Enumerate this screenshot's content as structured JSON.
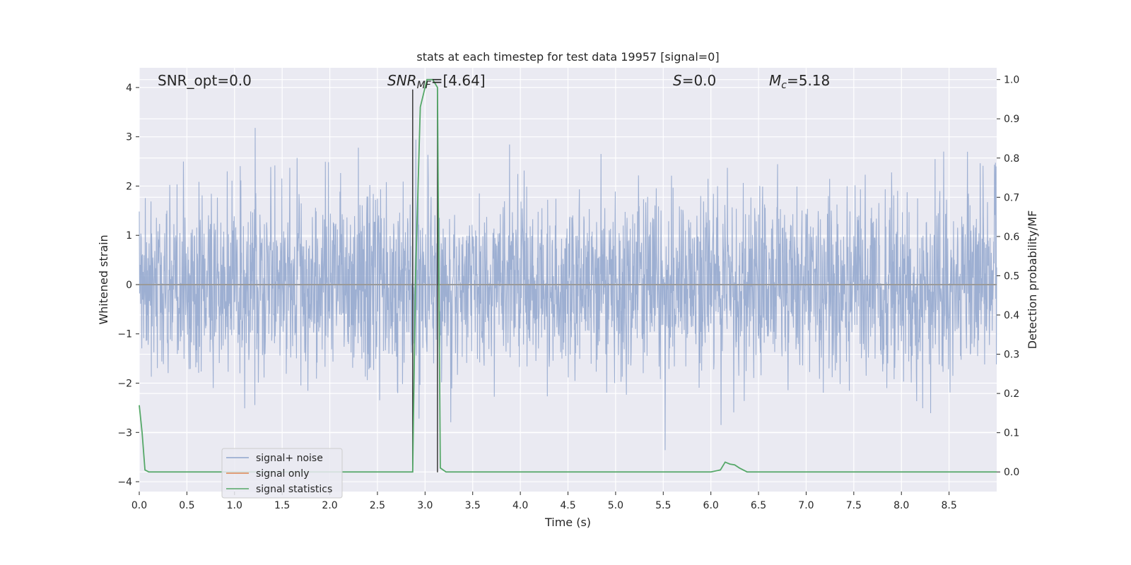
{
  "chart_data": {
    "type": "line",
    "title": "stats at each timestep for test data 19957 [signal=0]",
    "xlabel": "Time (s)",
    "ylabel": "Whitened strain",
    "ylabel_right": "Detection probability/MF",
    "xlim": [
      0.0,
      9.0
    ],
    "ylim": [
      -4.2,
      4.4
    ],
    "ylim_right": [
      -0.05,
      1.03
    ],
    "x_ticks": [
      "0.0",
      "0.5",
      "1.0",
      "1.5",
      "2.0",
      "2.5",
      "3.0",
      "3.5",
      "4.0",
      "4.5",
      "5.0",
      "5.5",
      "6.0",
      "6.5",
      "7.0",
      "7.5",
      "8.0",
      "8.5"
    ],
    "y_ticks": [
      "4",
      "3",
      "2",
      "1",
      "0",
      "−1",
      "−2",
      "−3",
      "−4"
    ],
    "y_ticks_right": [
      "1.0",
      "0.9",
      "0.8",
      "0.7",
      "0.6",
      "0.5",
      "0.4",
      "0.3",
      "0.2",
      "0.1",
      "0.0"
    ],
    "grid": true,
    "legend_position": "lower-left",
    "annotations": {
      "snr_opt": "SNR_opt=0.0",
      "snr_mf_symbol": "SNR",
      "snr_mf_sub": "MF",
      "snr_mf_value": "=[4.64]",
      "s_symbol": "S",
      "s_value": "=0.0",
      "mc_symbol": "M",
      "mc_sub": "c",
      "mc_value": "=5.18"
    },
    "vertical_markers": [
      2.87,
      3.13
    ],
    "series": [
      {
        "name": "signal+ noise",
        "color": "#8fa4cc",
        "kind": "noise",
        "duration": 9.0,
        "envelope_max": 3.6,
        "envelope_min": -3.9
      },
      {
        "name": "signal only",
        "color": "#dd8452",
        "x": [
          0.0,
          9.0
        ],
        "y": [
          0.0,
          0.0
        ]
      },
      {
        "name": "signal statistics",
        "color": "#55a868",
        "axis": "right",
        "x": [
          0.0,
          0.03,
          0.06,
          0.1,
          0.15,
          2.87,
          2.9,
          2.95,
          3.02,
          3.08,
          3.13,
          3.16,
          3.22,
          3.3,
          6.0,
          6.1,
          6.15,
          6.2,
          6.25,
          6.3,
          6.38,
          6.45,
          9.0
        ],
        "y": [
          0.17,
          0.1,
          0.005,
          0.0,
          0.0,
          0.0,
          0.5,
          0.93,
          1.0,
          1.0,
          0.98,
          0.01,
          0.0,
          0.0,
          0.0,
          0.005,
          0.025,
          0.02,
          0.018,
          0.01,
          0.0,
          0.0,
          0.0
        ]
      }
    ]
  }
}
